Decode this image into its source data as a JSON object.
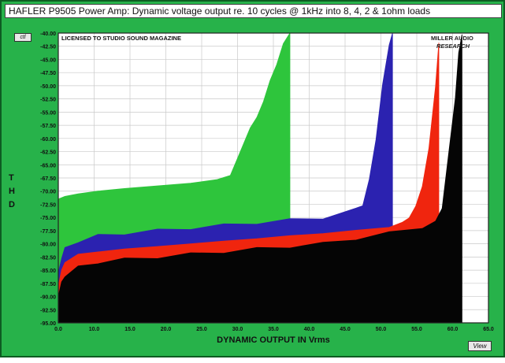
{
  "window": {
    "title": "HAFLER P9505 Power Amp: Dynamic voltage output re. 10 cycles @ 1kHz into 8, 4, 2 & 1ohm loads",
    "corner_button": "ctl",
    "view_button": "View"
  },
  "chart_data": {
    "type": "area",
    "title": "",
    "xlabel": "DYNAMIC OUTPUT IN Vrms",
    "ylabel": "T H D",
    "xlim": [
      0,
      65
    ],
    "ylim": [
      -95,
      -40
    ],
    "x_ticks": [
      "0.0",
      "10.0",
      "15.0",
      "20.0",
      "25.0",
      "30.0",
      "35.0",
      "40.0",
      "45.0",
      "50.0",
      "55.0",
      "60.0",
      "65.0"
    ],
    "y_ticks": [
      "-40.00",
      "-42.50",
      "-45.00",
      "-47.50",
      "-50.00",
      "-52.50",
      "-55.00",
      "-57.50",
      "-60.00",
      "-62.50",
      "-65.00",
      "-67.50",
      "-70.00",
      "-72.50",
      "-75.00",
      "-77.50",
      "-80.00",
      "-82.50",
      "-85.00",
      "-87.50",
      "-90.00",
      "-92.50",
      "-95.00"
    ],
    "grid": true,
    "annotations": [
      "LICENSED TO STUDIO SOUND MAGAZINE",
      "MILLER AUDIO RESEARCH"
    ],
    "series": [
      {
        "color": "#2ec53c",
        "x": [
          0,
          1,
          3,
          6,
          10,
          15,
          20,
          24,
          26,
          27,
          28,
          29,
          30,
          31,
          32,
          33,
          34,
          35,
          35
        ],
        "y": [
          -71.5,
          -71,
          -70.5,
          -70,
          -69.5,
          -69,
          -68.5,
          -67.8,
          -67,
          -64,
          -61,
          -58,
          -56,
          -53,
          -49,
          -46,
          -42,
          -40,
          -95
        ]
      },
      {
        "color": "#2b22b0",
        "x": [
          0,
          0.5,
          1,
          3,
          6,
          10,
          15,
          20,
          25,
          30,
          35,
          40,
          45,
          46,
          47,
          48,
          49,
          50,
          50.5,
          50.5
        ],
        "y": [
          -85.5,
          -82.5,
          -81,
          -79.5,
          -78.5,
          -78,
          -77.5,
          -77,
          -76.5,
          -76,
          -75.5,
          -75,
          -73.5,
          -72.5,
          -68,
          -60,
          -50,
          -42,
          -40,
          -95
        ]
      },
      {
        "color": "#f0250e",
        "x": [
          0,
          0.5,
          1,
          3,
          6,
          10,
          15,
          20,
          25,
          30,
          35,
          40,
          45,
          50,
          52,
          53,
          54,
          55,
          56,
          57,
          57.5,
          57.5
        ],
        "y": [
          -88,
          -85,
          -83.5,
          -82,
          -81.5,
          -81,
          -80.5,
          -80,
          -79.5,
          -79,
          -78.5,
          -78,
          -77.5,
          -76.8,
          -76,
          -75,
          -73,
          -69,
          -62,
          -50,
          -42,
          -95
        ]
      },
      {
        "color": "#050505",
        "x": [
          0,
          0.5,
          1,
          3,
          6,
          10,
          15,
          20,
          25,
          30,
          35,
          40,
          45,
          50,
          55,
          57,
          58,
          59,
          60,
          60.5,
          61,
          61
        ],
        "y": [
          -90,
          -87.5,
          -86,
          -84.5,
          -83.5,
          -83,
          -82.5,
          -82,
          -81.5,
          -81,
          -80.5,
          -80,
          -79,
          -78,
          -76.8,
          -76,
          -73,
          -63,
          -52,
          -44,
          -40,
          -95
        ]
      }
    ]
  }
}
